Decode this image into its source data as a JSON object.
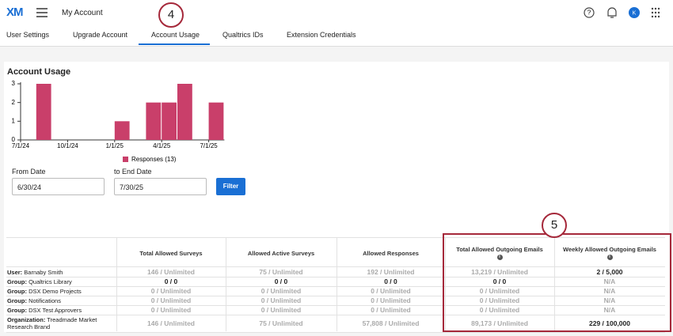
{
  "header": {
    "logo": "XM",
    "title": "My Account"
  },
  "tabs": [
    "User Settings",
    "Upgrade Account",
    "Account Usage",
    "Qualtrics IDs",
    "Extension Credentials"
  ],
  "callouts": [
    "4",
    "5"
  ],
  "panel_title": "Account Usage",
  "chart_data": {
    "type": "bar",
    "categories": [
      "7/1/24",
      null,
      null,
      "10/1/24",
      null,
      null,
      "1/1/25",
      null,
      null,
      "4/1/25",
      null,
      null,
      "7/1/25"
    ],
    "series": [
      {
        "name": "Responses (13)",
        "color": "#c93f6a",
        "values": [
          0,
          3,
          0,
          0,
          0,
          0,
          1,
          0,
          2,
          2,
          3,
          0,
          2
        ]
      }
    ],
    "ylim": [
      0,
      3
    ],
    "yticks": [
      0,
      1,
      2,
      3
    ]
  },
  "form": {
    "from_label": "From Date",
    "from_value": "6/30/24",
    "to_label": "to End Date",
    "to_value": "7/30/25",
    "button": "Filter"
  },
  "table": {
    "columns": [
      "Total Allowed Surveys",
      "Allowed Active Surveys",
      "Allowed Responses",
      "Total Allowed Outgoing Emails",
      "Weekly Allowed Outgoing Emails"
    ],
    "rows": [
      {
        "kind": "User:",
        "name": "Barnaby Smith",
        "cells": [
          "146 / Unlimited",
          "75 / Unlimited",
          "192 / Unlimited",
          "13,219 / Unlimited",
          "2 / 5,000"
        ]
      },
      {
        "kind": "Group:",
        "name": "Qualtrics Library",
        "cells": [
          "0 / 0",
          "0 / 0",
          "0 / 0",
          "0 / 0",
          "N/A"
        ]
      },
      {
        "kind": "Group:",
        "name": "DSX Demo Projects",
        "cells": [
          "0 / Unlimited",
          "0 / Unlimited",
          "0 / Unlimited",
          "0 / Unlimited",
          "N/A"
        ]
      },
      {
        "kind": "Group:",
        "name": "Notifications",
        "cells": [
          "0 / Unlimited",
          "0 / Unlimited",
          "0 / Unlimited",
          "0 / Unlimited",
          "N/A"
        ]
      },
      {
        "kind": "Group:",
        "name": "DSX Test Approvers",
        "cells": [
          "0 / Unlimited",
          "0 / Unlimited",
          "0 / Unlimited",
          "0 / Unlimited",
          "N/A"
        ]
      },
      {
        "kind": "Organization:",
        "name": "Treadmade Market Research Brand",
        "cells": [
          "146 / Unlimited",
          "75 / Unlimited",
          "57,808 / Unlimited",
          "89,173 / Unlimited",
          "229 / 100,000"
        ]
      }
    ]
  }
}
